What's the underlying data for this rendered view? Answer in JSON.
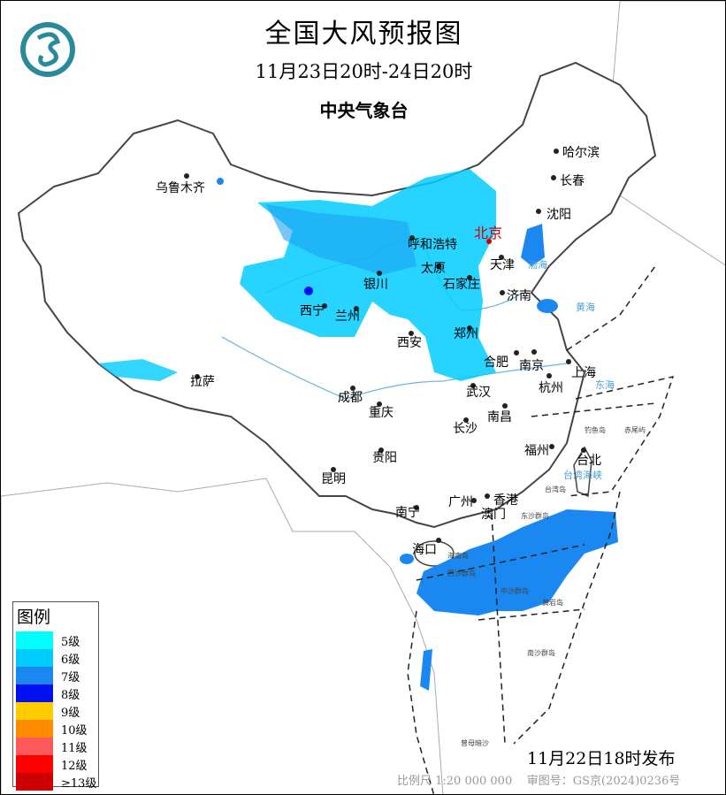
{
  "header": {
    "title": "全国大风预报图",
    "period": "11月23日20时-24日20时",
    "issuer": "中央气象台"
  },
  "legend": {
    "title": "图例",
    "items": [
      {
        "label": "5级",
        "color": "#00ffff"
      },
      {
        "label": "6级",
        "color": "#00ccff"
      },
      {
        "label": "7级",
        "color": "#1a88f0"
      },
      {
        "label": "8级",
        "color": "#0010f0"
      },
      {
        "label": "9级",
        "color": "#ffcc00"
      },
      {
        "label": "10级",
        "color": "#ff8c00"
      },
      {
        "label": "11级",
        "color": "#ff5a5a"
      },
      {
        "label": "12级",
        "color": "#ff0000"
      },
      {
        "label": "≥13级",
        "color": "#cc0000"
      }
    ]
  },
  "cities": {
    "capital": "北京",
    "others": [
      "乌鲁木齐",
      "哈尔滨",
      "长春",
      "沈阳",
      "天津",
      "呼和浩特",
      "太原",
      "石家庄",
      "济南",
      "银川",
      "兰州",
      "西宁",
      "郑州",
      "西安",
      "合肥",
      "南京",
      "上海",
      "杭州",
      "拉萨",
      "成都",
      "武汉",
      "重庆",
      "南昌",
      "长沙",
      "贵阳",
      "福州",
      "台北",
      "昆明",
      "广州",
      "香港",
      "澳门",
      "南宁",
      "海口"
    ]
  },
  "islands": [
    "东沙群岛",
    "西沙群岛",
    "中沙群岛",
    "海南岛",
    "台湾岛",
    "钓鱼岛",
    "赤尾屿",
    "黄岩岛",
    "曾母暗沙",
    "南沙群岛"
  ],
  "seas": [
    "渤海",
    "黄海",
    "东海",
    "台湾海峡"
  ],
  "issued": "11月22日18时发布",
  "footer": {
    "scale": "比例尺 1:20 000 000",
    "approval": "审图号：GS京(2024)0236号"
  },
  "colors": {
    "capital": "#d40000",
    "border": "#555555",
    "river": "#6ab4dd"
  }
}
